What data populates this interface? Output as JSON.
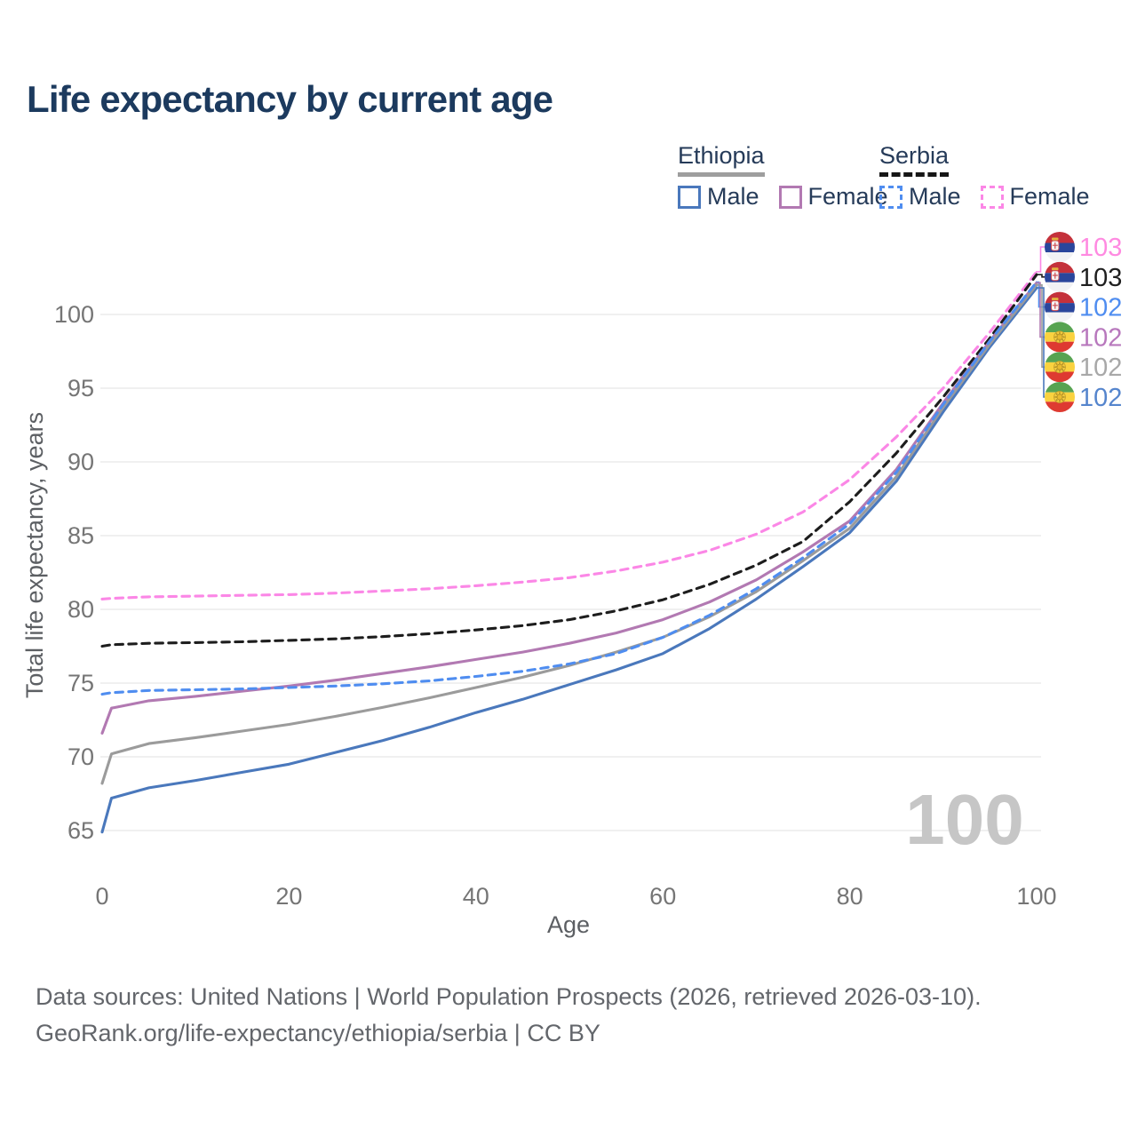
{
  "title": "Life expectancy by current age",
  "legend": {
    "groups": [
      {
        "label": "Ethiopia",
        "style": "solid",
        "items": [
          {
            "label": "Male",
            "color": "#4a78bc"
          },
          {
            "label": "Female",
            "color": "#b279b2"
          }
        ]
      },
      {
        "label": "Serbia",
        "style": "dashed",
        "items": [
          {
            "label": "Male",
            "color": "#4f8df0"
          },
          {
            "label": "Female",
            "color": "#fb87e6"
          }
        ]
      }
    ]
  },
  "chart_data": {
    "type": "line",
    "title": "Life expectancy by current age",
    "xlabel": "Age",
    "ylabel": "Total life expectancy, years",
    "xlim": [
      0,
      100
    ],
    "ylim": [
      63.5,
      104
    ],
    "xticks": [
      0,
      20,
      40,
      60,
      80,
      100
    ],
    "yticks": [
      65,
      70,
      75,
      80,
      85,
      90,
      95,
      100
    ],
    "grid": "horizontal",
    "legend_position": "top-right",
    "watermark": "100",
    "ages": [
      0,
      1,
      5,
      10,
      15,
      20,
      25,
      30,
      35,
      40,
      45,
      50,
      55,
      60,
      65,
      70,
      75,
      80,
      85,
      90,
      95,
      100
    ],
    "series": [
      {
        "name": "Serbia Female",
        "country": "Serbia",
        "sex": "Female",
        "color": "#fb87e6",
        "label_color": "#ff8ae1",
        "dash": true,
        "flag": "serbia",
        "end_label": "103",
        "values": [
          80.7,
          80.75,
          80.85,
          80.9,
          80.95,
          81.0,
          81.1,
          81.25,
          81.4,
          81.6,
          81.85,
          82.15,
          82.6,
          83.2,
          84.0,
          85.1,
          86.6,
          88.8,
          91.7,
          95.0,
          98.8,
          102.9
        ]
      },
      {
        "name": "Serbia Total",
        "country": "Serbia",
        "sex": "Total",
        "color": "#1d1d1d",
        "label_color": "#1f1f1f",
        "dash": true,
        "flag": "serbia",
        "end_label": "103",
        "values": [
          77.5,
          77.6,
          77.7,
          77.75,
          77.8,
          77.9,
          78.0,
          78.15,
          78.35,
          78.6,
          78.9,
          79.3,
          79.9,
          80.65,
          81.7,
          83.0,
          84.6,
          87.3,
          90.6,
          94.4,
          98.4,
          102.7
        ]
      },
      {
        "name": "Serbia Male",
        "country": "Serbia",
        "sex": "Male",
        "color": "#4f8df0",
        "label_color": "#4f8df0",
        "dash": true,
        "flag": "serbia",
        "end_label": "102",
        "values": [
          74.25,
          74.35,
          74.5,
          74.55,
          74.6,
          74.7,
          74.8,
          74.95,
          75.15,
          75.45,
          75.8,
          76.3,
          77.0,
          78.1,
          79.6,
          81.4,
          83.5,
          85.8,
          89.3,
          93.9,
          98.2,
          102.2
        ]
      },
      {
        "name": "Ethiopia Female",
        "country": "Ethiopia",
        "sex": "Female",
        "color": "#b279b2",
        "label_color": "#b878bd",
        "dash": false,
        "flag": "ethiopia",
        "end_label": "102",
        "values": [
          71.6,
          73.3,
          73.8,
          74.1,
          74.45,
          74.8,
          75.2,
          75.65,
          76.1,
          76.6,
          77.1,
          77.7,
          78.4,
          79.3,
          80.5,
          82.0,
          83.9,
          86.0,
          89.5,
          94.0,
          98.2,
          102.15
        ]
      },
      {
        "name": "Ethiopia Total",
        "country": "Ethiopia",
        "sex": "Total",
        "color": "#9b9b9b",
        "label_color": "#a8a8a8",
        "dash": false,
        "flag": "ethiopia",
        "end_label": "102",
        "values": [
          68.2,
          70.2,
          70.9,
          71.3,
          71.75,
          72.2,
          72.75,
          73.35,
          74.0,
          74.7,
          75.4,
          76.2,
          77.1,
          78.1,
          79.5,
          81.2,
          83.3,
          85.5,
          89.0,
          93.7,
          98.0,
          102.0
        ]
      },
      {
        "name": "Ethiopia Male",
        "country": "Ethiopia",
        "sex": "Male",
        "color": "#4a78bc",
        "label_color": "#5585cd",
        "dash": false,
        "flag": "ethiopia",
        "end_label": "102",
        "values": [
          64.9,
          67.2,
          67.9,
          68.4,
          68.95,
          69.5,
          70.3,
          71.1,
          72.0,
          73.0,
          73.9,
          74.9,
          75.9,
          77.0,
          78.7,
          80.7,
          82.9,
          85.2,
          88.7,
          93.4,
          97.8,
          101.8
        ]
      }
    ]
  },
  "footer": {
    "line1": "Data sources: United Nations | World Population Prospects (2026, retrieved 2026-03-10).",
    "line2": "GeoRank.org/life-expectancy/ethiopia/serbia | CC BY"
  }
}
